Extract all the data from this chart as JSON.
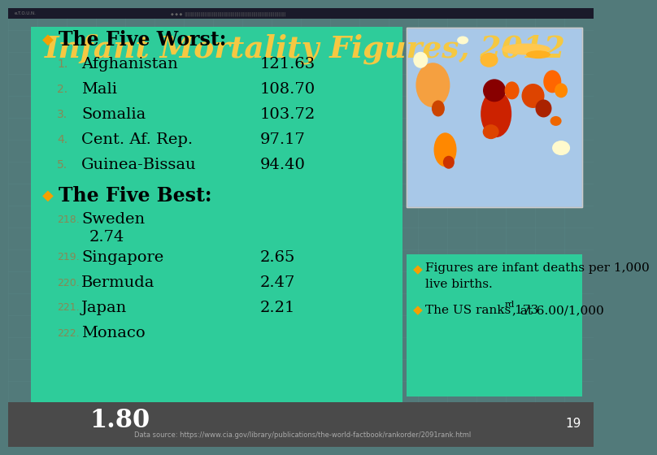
{
  "title": "Infant Mortality Figures, 2012",
  "title_color": "#F5C842",
  "bg_color": "#527A7A",
  "panel_color": "#2ECC9A",
  "bottom_panel_color": "#4A4A4A",
  "bullet_color": "#F5A000",
  "worst_header": "The Five Worst:",
  "best_header": "The Five Best:",
  "worst_items": [
    [
      "1.",
      "Afghanistan",
      "121.63"
    ],
    [
      "2.",
      "Mali",
      "108.70"
    ],
    [
      "3.",
      "Somalia",
      "103.72"
    ],
    [
      "4.",
      "Cent. Af. Rep.",
      "97.17"
    ],
    [
      "5.",
      "Guinea-Bissau",
      "94.40"
    ]
  ],
  "best_items": [
    [
      "218.",
      "Sweden",
      "2.74"
    ],
    [
      "219.",
      "Singapore",
      "2.65"
    ],
    [
      "220.",
      "Bermuda",
      "2.47"
    ],
    [
      "221.",
      "Japan",
      "2.21"
    ],
    [
      "222.",
      "Monaco",
      "1.80"
    ]
  ],
  "note1": "Figures are infant deaths per 1,000\nlive births.",
  "note2": "The US ranks 173",
  "note2_super": "rd",
  "note2_end": ", at 6.00/1,000",
  "source": "Data source: https://www.cia.gov/library/publications/the-world-factbook/rankorder/2091rank.html",
  "page_num": "19",
  "header_strip_color": "#1A1A2A",
  "text_color": "#000000",
  "num_color": "#888855",
  "white_color": "#FFFFFF",
  "small_text_color": "#AAAAAA",
  "grid_color": "#5A8A8A",
  "map_bg": "#A8C8E8"
}
